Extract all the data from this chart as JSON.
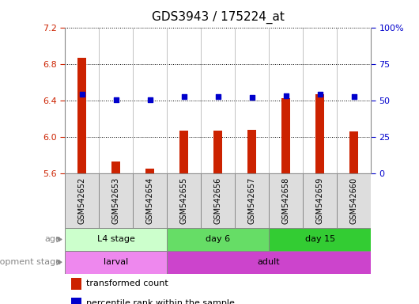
{
  "title": "GDS3943 / 175224_at",
  "samples": [
    "GSM542652",
    "GSM542653",
    "GSM542654",
    "GSM542655",
    "GSM542656",
    "GSM542657",
    "GSM542658",
    "GSM542659",
    "GSM542660"
  ],
  "transformed_count": [
    6.87,
    5.73,
    5.65,
    6.07,
    6.07,
    6.08,
    6.42,
    6.47,
    6.06
  ],
  "percentile_rank": [
    6.47,
    6.41,
    6.41,
    6.44,
    6.44,
    6.43,
    6.45,
    6.47,
    6.44
  ],
  "ylim": [
    5.6,
    7.2
  ],
  "y2lim": [
    0,
    100
  ],
  "yticks": [
    5.6,
    6.0,
    6.4,
    6.8,
    7.2
  ],
  "y2ticks": [
    0,
    25,
    50,
    75,
    100
  ],
  "y2ticklabels": [
    "0",
    "25",
    "50",
    "75",
    "100%"
  ],
  "bar_color": "#cc2200",
  "dot_color": "#0000cc",
  "age_groups": [
    {
      "label": "L4 stage",
      "start": 0,
      "end": 3,
      "color": "#ccffcc"
    },
    {
      "label": "day 6",
      "start": 3,
      "end": 6,
      "color": "#66dd66"
    },
    {
      "label": "day 15",
      "start": 6,
      "end": 9,
      "color": "#33cc33"
    }
  ],
  "dev_groups": [
    {
      "label": "larval",
      "start": 0,
      "end": 3,
      "color": "#ee88ee"
    },
    {
      "label": "adult",
      "start": 3,
      "end": 9,
      "color": "#cc44cc"
    }
  ],
  "age_label": "age",
  "dev_label": "development stage",
  "legend_bar_label": "transformed count",
  "legend_dot_label": "percentile rank within the sample",
  "tick_label_color": "#cc2200",
  "y2_tick_color": "#0000cc",
  "title_fontsize": 11,
  "bar_width": 0.25,
  "sample_bg_color": "#dddddd",
  "sample_border_color": "#888888"
}
